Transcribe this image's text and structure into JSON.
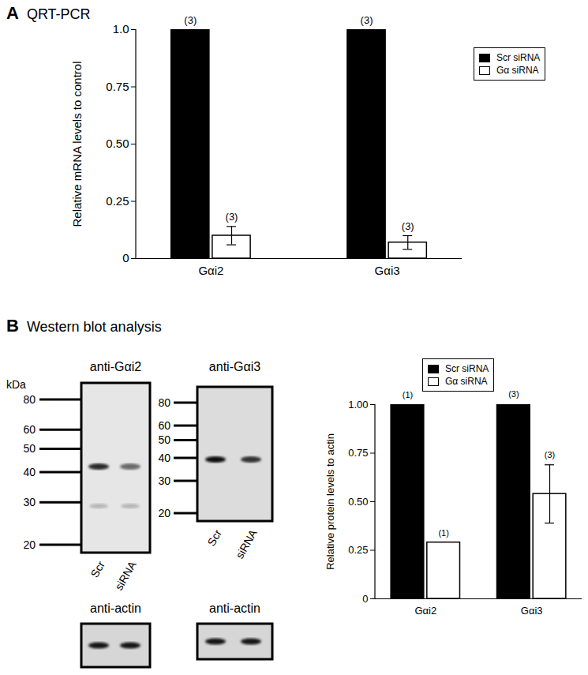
{
  "figure": {
    "panels": [
      {
        "label": "A",
        "title": "QRT-PCR"
      },
      {
        "label": "B",
        "title": "Western blot analysis"
      }
    ]
  },
  "chart_data": [
    {
      "type": "bar",
      "y_label": "Relative mRNA levels to control",
      "categories": [
        "Gαi2",
        "Gαi3"
      ],
      "series": [
        {
          "name": "Scr siRNA",
          "color": "#000000",
          "values": [
            1,
            1
          ],
          "n_labels": [
            "(3)",
            "(3)"
          ]
        },
        {
          "name": "Gα siRNA",
          "color": "#ffffff",
          "values": [
            0.1,
            0.07
          ],
          "errors": [
            0.04,
            0.03
          ],
          "n_labels": [
            "(3)",
            "(3)"
          ]
        }
      ],
      "ylim": [
        0,
        1
      ],
      "yticks": [
        0,
        0.25,
        {
          "value": 0.5,
          "label": "0.50"
        },
        0.75,
        {
          "value": 1,
          "label": "1.0"
        }
      ],
      "legend": "top-right",
      "grid": false
    },
    {
      "type": "bar",
      "y_label": "Relative protein levels to actin",
      "categories": [
        "Gαi2",
        "Gαi3"
      ],
      "series": [
        {
          "name": "Scr siRNA",
          "color": "#000000",
          "values": [
            1,
            1
          ],
          "errors": [
            null,
            0.005
          ],
          "n_labels": [
            "(1)",
            "(3)"
          ]
        },
        {
          "name": "Gα siRNA",
          "color": "#ffffff",
          "values": [
            0.29,
            0.54
          ],
          "errors": [
            null,
            0.15
          ],
          "n_labels": [
            "(1)",
            "(3)"
          ]
        }
      ],
      "ylim": [
        0,
        1
      ],
      "yticks": [
        0,
        0.25,
        {
          "value": 0.5,
          "label": "0.50"
        },
        0.75,
        {
          "value": 1,
          "label": "1.00"
        }
      ],
      "legend": "top-right",
      "grid": false
    }
  ],
  "blots": [
    {
      "title": "anti-Gαi2",
      "marker_label": "kDa",
      "markers": [
        80,
        60,
        50,
        40,
        30,
        20
      ],
      "lanes": [
        "Scr",
        "siRNA"
      ],
      "loading_control": "anti-actin"
    },
    {
      "title": "anti-Gαi3",
      "markers": [
        80,
        60,
        50,
        40,
        30,
        20
      ],
      "lanes": [
        "Scr",
        "siRNA"
      ],
      "loading_control": "anti-actin"
    }
  ]
}
